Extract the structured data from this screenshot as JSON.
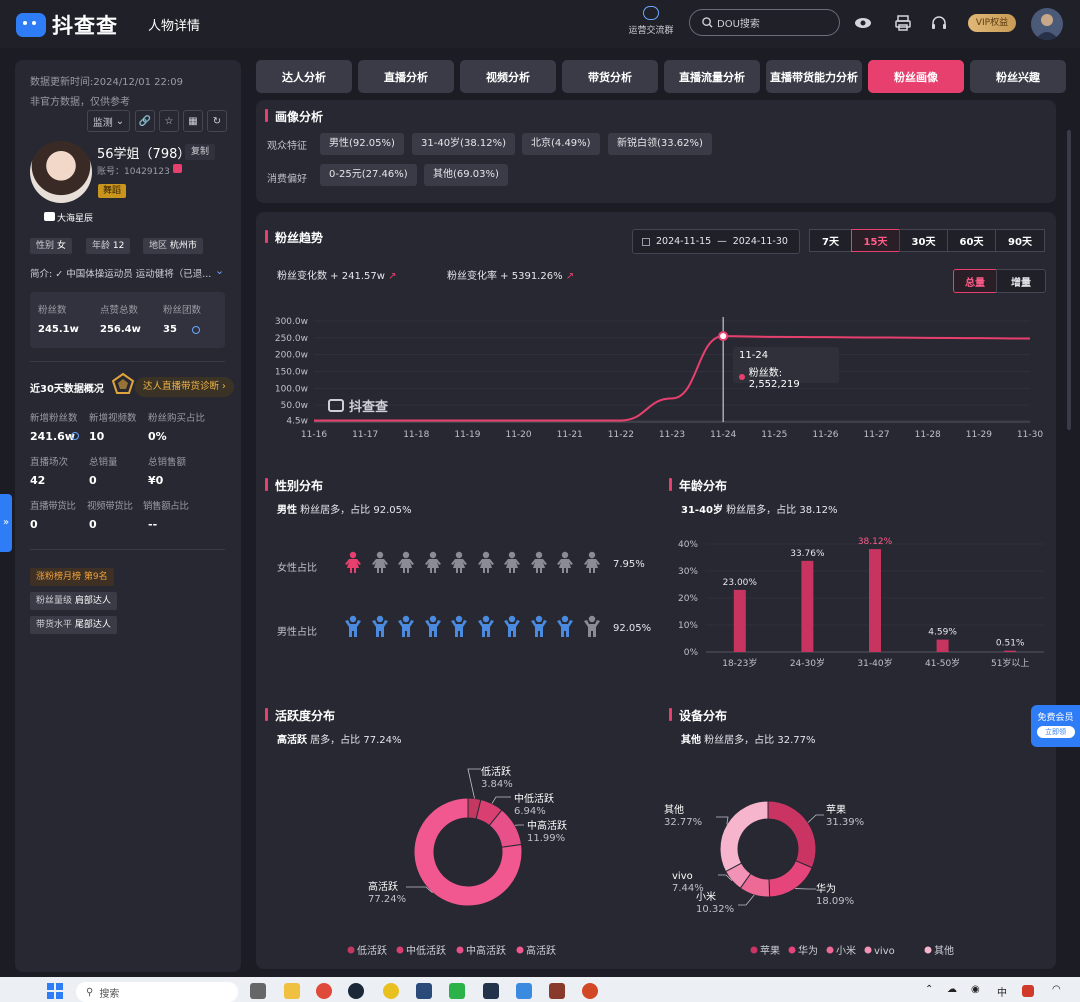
{
  "header": {
    "brand": "抖查查",
    "page_title": "人物详情",
    "group_label": "运营交流群",
    "search_placeholder": "DOU搜索",
    "vip_label": "VIP权益"
  },
  "profile": {
    "update_time": "数据更新时间:2024/12/01 22:09",
    "disclaimer": "非官方数据，仅供参考",
    "monitor_label": "监测",
    "name": "56学姐（798）",
    "copy_label": "复制",
    "account": "账号：10429123",
    "category": "舞蹈",
    "mcn": "大海星辰",
    "gender_label": "性别",
    "gender": "女",
    "age_label": "年龄",
    "age": "12",
    "region_label": "地区",
    "region": "杭州市",
    "bio": "简介: ✓ 中国体操运动员 运动健将（已退...",
    "stats": [
      {
        "label": "粉丝数",
        "value": "245.1w"
      },
      {
        "label": "点赞总数",
        "value": "256.4w"
      },
      {
        "label": "粉丝团数",
        "value": "35"
      }
    ],
    "overview_title": "近30天数据概况",
    "diagnose_label": "达人直播带货诊断",
    "metrics": [
      {
        "label": "新增粉丝数",
        "value": "241.6w"
      },
      {
        "label": "新增视频数",
        "value": "10"
      },
      {
        "label": "粉丝购买占比",
        "value": "0%"
      },
      {
        "label": "直播场次",
        "value": "42"
      },
      {
        "label": "总销量",
        "value": "0"
      },
      {
        "label": "总销售额",
        "value": "¥0"
      },
      {
        "label": "直播带货比",
        "value": "0"
      },
      {
        "label": "视频带货比",
        "value": "0"
      },
      {
        "label": "销售额占比",
        "value": "--"
      }
    ],
    "rank_tag": "涨粉榜月榜 第9名",
    "level_label": "粉丝量级",
    "level_value": "肩部达人",
    "sales_label": "带货水平",
    "sales_value": "尾部达人"
  },
  "tabs": [
    {
      "label": "达人分析"
    },
    {
      "label": "直播分析"
    },
    {
      "label": "视频分析"
    },
    {
      "label": "带货分析"
    },
    {
      "label": "直播流量分析"
    },
    {
      "label": "直播带货能力分析"
    },
    {
      "label": "粉丝画像"
    },
    {
      "label": "粉丝兴趣"
    }
  ],
  "portrait": {
    "title": "画像分析",
    "audience_label": "观众特征",
    "audience": [
      "男性(92.05%)",
      "31-40岁(38.12%)",
      "北京(4.49%)",
      "新锐白领(33.62%)"
    ],
    "consume_label": "消费偏好",
    "consume": [
      "0-25元(27.46%)",
      "其他(69.03%)"
    ]
  },
  "trend": {
    "title": "粉丝趋势",
    "date_start": "2024-11-15",
    "date_sep": "—",
    "date_end": "2024-11-30",
    "ranges": [
      "7天",
      "15天",
      "30天",
      "60天",
      "90天"
    ],
    "change_label": "粉丝变化数 + 241.57w",
    "rate_label": "粉丝变化率 + 5391.26%",
    "mode_total": "总量",
    "mode_inc": "增量",
    "tooltip_date": "11-24",
    "tooltip_value": "粉丝数: 2,552,219",
    "watermark": "抖查查"
  },
  "gender": {
    "title": "性别分布",
    "summary_key": "男性",
    "summary_rest": " 粉丝居多，占比 92.05%",
    "female_label": "女性占比",
    "female_pct": "7.95%",
    "male_label": "男性占比",
    "male_pct": "92.05%"
  },
  "age": {
    "title": "年龄分布",
    "summary_key": "31-40岁",
    "summary_rest": " 粉丝居多，占比 38.12%"
  },
  "activity": {
    "title": "活跃度分布",
    "summary_key": "高活跃",
    "summary_rest": " 居多，占比 77.24%"
  },
  "device": {
    "title": "设备分布",
    "summary_key": "其他",
    "summary_rest": " 粉丝居多，占比 32.77%"
  },
  "chart_data": [
    {
      "type": "line",
      "x": [
        "11-16",
        "11-17",
        "11-18",
        "11-19",
        "11-20",
        "11-21",
        "11-22",
        "11-23",
        "11-24",
        "11-25",
        "11-26",
        "11-27",
        "11-28",
        "11-29",
        "11-30"
      ],
      "series": [
        {
          "name": "粉丝数",
          "values": [
            4.5,
            4.5,
            4.5,
            4.5,
            4.5,
            4.5,
            4.6,
            70,
            255.2,
            253,
            252,
            251,
            250,
            249,
            248
          ]
        }
      ],
      "y_ticks": [
        "4.5w",
        "50.0w",
        "100.0w",
        "150.0w",
        "200.0w",
        "250.0w",
        "300.0w"
      ],
      "ylim": [
        0,
        300
      ],
      "color": "#e8406e"
    },
    {
      "type": "bar",
      "categories": [
        "18-23岁",
        "24-30岁",
        "31-40岁",
        "41-50岁",
        "51岁以上"
      ],
      "values": [
        23.0,
        33.76,
        38.12,
        4.59,
        0.51
      ],
      "value_labels": [
        "23.00%",
        "33.76%",
        "38.12%",
        "4.59%",
        "0.51%"
      ],
      "y_ticks": [
        "0%",
        "10%",
        "20%",
        "30%",
        "40%"
      ],
      "ylim": [
        0,
        40
      ],
      "color": "#c6345f",
      "highlight": "#ff5c8a"
    },
    {
      "type": "pie",
      "labels": [
        "低活跃",
        "中低活跃",
        "中高活跃",
        "高活跃"
      ],
      "values": [
        3.84,
        6.94,
        11.99,
        77.24
      ],
      "value_labels": [
        "3.84%",
        "6.94%",
        "11.99%",
        "77.24%"
      ],
      "colors": [
        "#c2385e",
        "#d94071",
        "#e8508a",
        "#f0588f"
      ]
    },
    {
      "type": "pie",
      "labels": [
        "苹果",
        "华为",
        "小米",
        "vivo",
        "其他"
      ],
      "values": [
        31.39,
        18.09,
        10.32,
        7.44,
        32.77
      ],
      "value_labels": [
        "31.39%",
        "18.09%",
        "10.32%",
        "7.44%",
        "32.77%"
      ],
      "colors": [
        "#c93463",
        "#e5457a",
        "#ee6a96",
        "#f293b5",
        "#f7b5cd"
      ]
    }
  ],
  "floating": {
    "free_title": "免费会员",
    "free_btn": "立即领"
  },
  "taskbar": {
    "search": "搜索",
    "ime": "中"
  }
}
